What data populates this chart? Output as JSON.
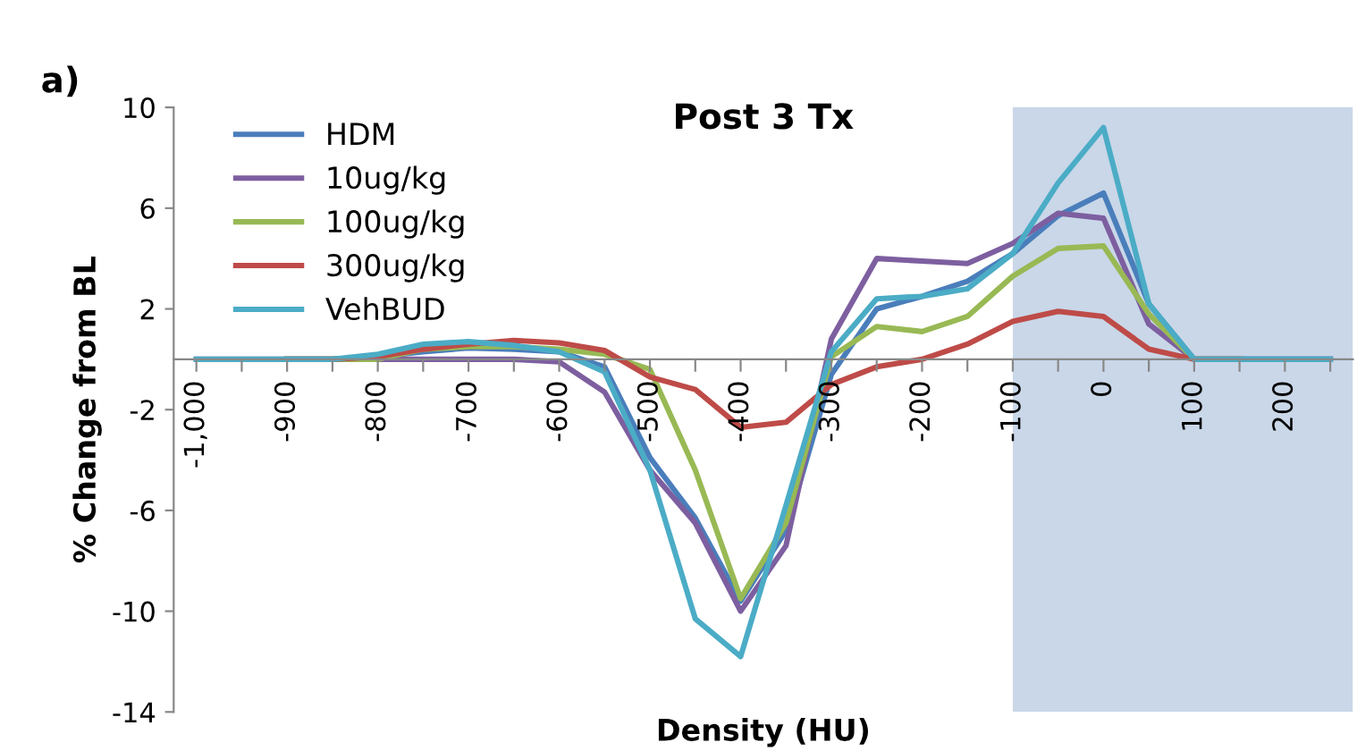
{
  "chart_data": {
    "type": "line",
    "title": "Post 3 Tx",
    "xlabel": "Density (HU)",
    "ylabel": "% Change from BL",
    "annotations": [
      "a)"
    ],
    "x": [
      -1000,
      -950,
      -900,
      -850,
      -800,
      -750,
      -700,
      -650,
      -600,
      -550,
      -500,
      -450,
      -400,
      -350,
      -300,
      -250,
      -200,
      -150,
      -100,
      -50,
      0,
      50,
      100,
      150,
      200,
      250
    ],
    "series": [
      {
        "name": "HDM",
        "color": "#4a7ebb",
        "values": [
          null,
          null,
          0,
          0,
          0.1,
          0.3,
          0.45,
          0.4,
          0.3,
          -0.3,
          -3.9,
          -6.3,
          -9.6,
          -6.8,
          -0.6,
          2.0,
          2.5,
          3.1,
          4.2,
          5.7,
          6.6,
          2.2,
          0,
          0,
          0,
          0
        ]
      },
      {
        "name": "10ug/kg",
        "color": "#7d5fa0",
        "values": [
          0,
          0,
          0,
          0,
          0,
          0,
          0,
          0,
          -0.1,
          -1.3,
          -4.4,
          -6.5,
          -10.0,
          -7.4,
          0.8,
          4.0,
          3.9,
          3.8,
          4.6,
          5.8,
          5.6,
          1.4,
          0,
          0,
          0,
          0
        ]
      },
      {
        "name": "100ug/kg",
        "color": "#98b954",
        "values": [
          null,
          null,
          0,
          0,
          0,
          0.4,
          0.5,
          0.5,
          0.4,
          0.2,
          -0.4,
          -4.4,
          -9.5,
          -6.5,
          0.1,
          1.3,
          1.1,
          1.7,
          3.3,
          4.4,
          4.5,
          1.8,
          0,
          0,
          null,
          null
        ]
      },
      {
        "name": "300ug/kg",
        "color": "#be4b48",
        "values": [
          null,
          null,
          0,
          0,
          0.1,
          0.4,
          0.6,
          0.75,
          0.65,
          0.35,
          -0.7,
          -1.2,
          -2.7,
          -2.5,
          -1.0,
          -0.3,
          0,
          0.6,
          1.5,
          1.9,
          1.7,
          0.4,
          0,
          0,
          null,
          null
        ]
      },
      {
        "name": "VehBUD",
        "color": "#4bacc6",
        "values": [
          0,
          0,
          0,
          0,
          0.2,
          0.6,
          0.7,
          0.55,
          0.3,
          -0.5,
          -4.4,
          -10.3,
          -11.8,
          -5.8,
          0.3,
          2.4,
          2.5,
          2.8,
          4.2,
          7.0,
          9.2,
          2.2,
          0,
          0,
          0,
          0
        ]
      }
    ],
    "xlim": [
      -1025,
      275
    ],
    "ylim": [
      -14,
      10
    ],
    "xticks": [
      {
        "value": -1000,
        "label": "-1,000"
      },
      {
        "value": -950,
        "label": null
      },
      -900,
      {
        "value": -850,
        "label": null
      },
      -800,
      {
        "value": -750,
        "label": null
      },
      -700,
      {
        "value": -650,
        "label": null
      },
      -600,
      {
        "value": -550,
        "label": null
      },
      -500,
      {
        "value": -450,
        "label": null
      },
      -400,
      {
        "value": -350,
        "label": null
      },
      -300,
      {
        "value": -250,
        "label": null
      },
      -200,
      {
        "value": -150,
        "label": null
      },
      -100,
      {
        "value": -50,
        "label": null
      },
      0,
      {
        "value": 50,
        "label": null
      },
      100,
      {
        "value": 150,
        "label": null
      },
      200,
      {
        "value": 250,
        "label": null
      }
    ],
    "yticks": [
      10,
      6,
      2,
      -2,
      -6,
      -10,
      -14
    ],
    "bands": [
      {
        "axis": "x",
        "from": -100,
        "to": 275,
        "color": "#c9d7e8"
      }
    ],
    "grid": false,
    "legend": "top left",
    "marker": "none",
    "line_style": "solid"
  }
}
